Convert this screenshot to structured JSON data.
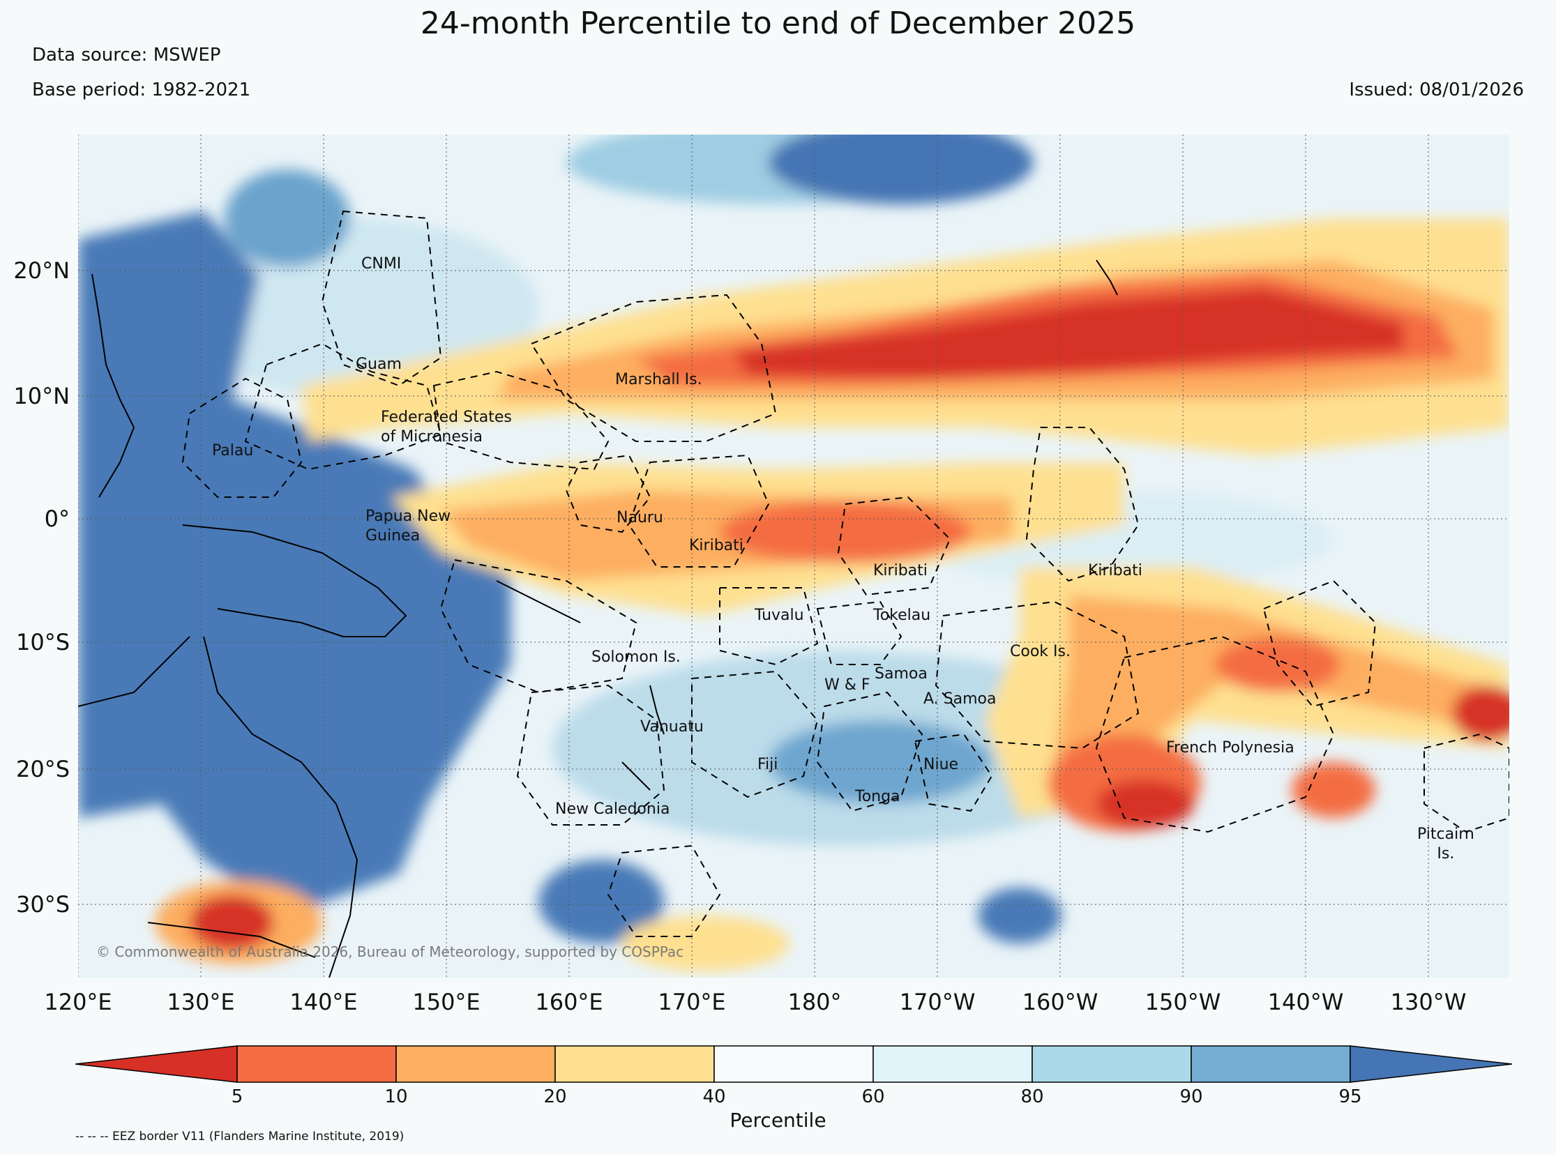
{
  "title": "24-month Percentile to end of December 2025",
  "data_source": "Data source: MSWEP",
  "base_period": "Base period: 1982-2021",
  "issued": "Issued: 08/01/2026",
  "longitude_labels": [
    "120°E",
    "130°E",
    "140°E",
    "150°E",
    "160°E",
    "170°E",
    "180°",
    "170°W",
    "160°W",
    "150°W",
    "140°W",
    "130°W"
  ],
  "latitude_labels": [
    "20°N",
    "10°N",
    "0°",
    "10°S",
    "20°S",
    "30°S"
  ],
  "regions": [
    "CNMI",
    "Guam",
    "Marshall Is.",
    "Federated States\nof Micronesia",
    "Palau",
    "Papua New\nGuinea",
    "Nauru",
    "Kiribati",
    "Kiribati",
    "Kiribati",
    "Tuvalu",
    "Tokelau",
    "Solomon Is.",
    "Cook Is.",
    "Samoa",
    "W & F",
    "A. Samoa",
    "Vanuatu",
    "French Polynesia",
    "Fiji",
    "Niue",
    "Tonga",
    "New Caledonia",
    "Pitcairn\nIs."
  ],
  "copyright": "© Commonwealth of Australia 2026, Bureau of Meteorology, supported by COSPPac",
  "colorbar": {
    "label": "Percentile",
    "ticks": [
      "5",
      "10",
      "20",
      "40",
      "60",
      "80",
      "90",
      "95"
    ],
    "colors": [
      "#d73027",
      "#f46d43",
      "#fdae61",
      "#fee090",
      "#f7fbfc",
      "#e0f3f8",
      "#abd9e9",
      "#74add1",
      "#4575b4"
    ]
  },
  "eez_note": "-- -- -- EEZ border V11 (Flanders Marine Institute, 2019)"
}
